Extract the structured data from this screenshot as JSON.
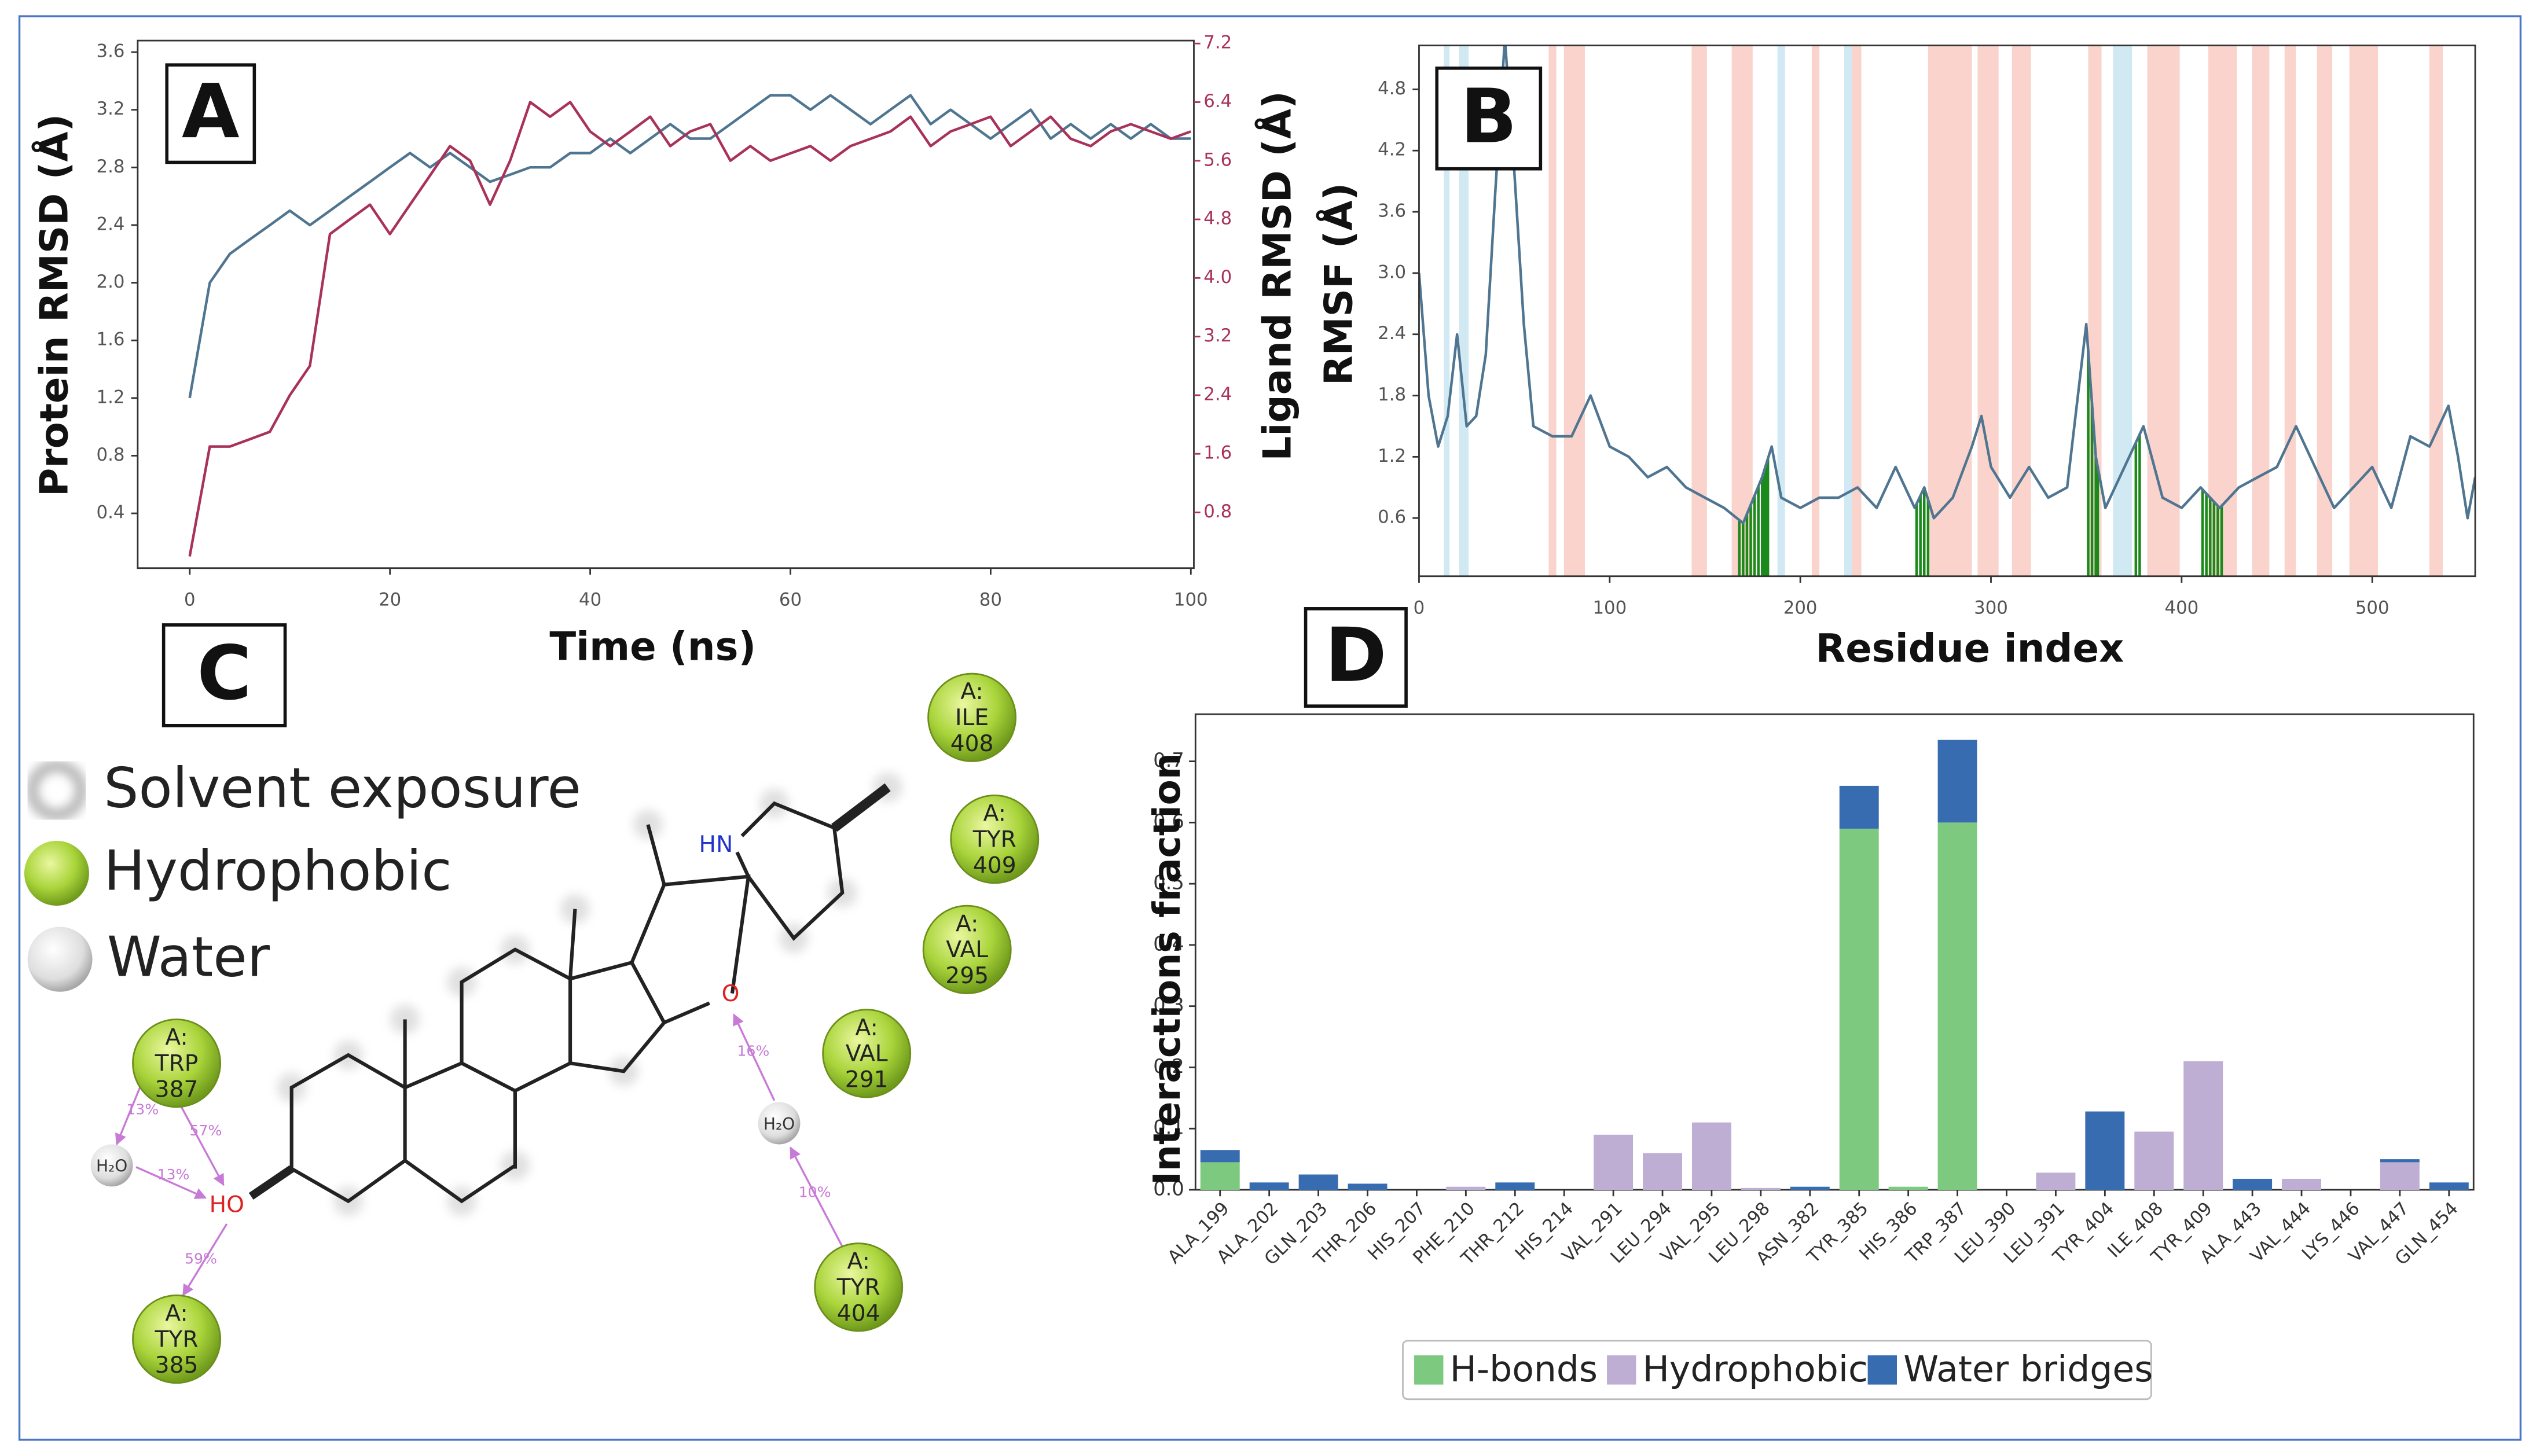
{
  "chart_data": [
    {
      "type": "line",
      "panel_label": "A",
      "xlabel": "Time (ns)",
      "ylabel": "Protein RMSD (Å)",
      "y2label": "Ligand RMSD (Å)",
      "x": [
        0,
        2,
        4,
        6,
        8,
        10,
        12,
        14,
        16,
        18,
        20,
        22,
        24,
        26,
        28,
        30,
        32,
        34,
        36,
        38,
        40,
        42,
        44,
        46,
        48,
        50,
        52,
        54,
        56,
        58,
        60,
        62,
        64,
        66,
        68,
        70,
        72,
        74,
        76,
        78,
        80,
        82,
        84,
        86,
        88,
        90,
        92,
        94,
        96,
        98,
        100
      ],
      "xlim": [
        -5.2,
        100.3
      ],
      "xticks": [
        0,
        20,
        40,
        60,
        80,
        100
      ],
      "ylim": [
        0.02,
        3.68
      ],
      "yticks": [
        0.4,
        0.8,
        1.2,
        1.6,
        {
          "value": 2,
          "label": "2.0"
        },
        2.4,
        2.8,
        3.2,
        3.6
      ],
      "y2lim": [
        0.04,
        7.24
      ],
      "y2ticks": [
        0.8,
        1.6,
        2.4,
        3.2,
        {
          "value": 4,
          "label": "4.0"
        },
        4.8,
        5.6,
        6.4,
        7.2
      ],
      "series": [
        {
          "color": "#4f7590",
          "values": [
            1.2,
            2.0,
            2.2,
            2.3,
            2.4,
            2.5,
            2.4,
            2.5,
            2.6,
            2.7,
            2.8,
            2.9,
            2.8,
            2.9,
            2.8,
            2.7,
            2.75,
            2.8,
            2.8,
            2.9,
            2.9,
            3.0,
            2.9,
            3.0,
            3.1,
            3.0,
            3.0,
            3.1,
            3.2,
            3.3,
            3.3,
            3.2,
            3.3,
            3.2,
            3.1,
            3.2,
            3.3,
            3.1,
            3.2,
            3.1,
            3.0,
            3.1,
            3.2,
            3.0,
            3.1,
            3.0,
            3.1,
            3.0,
            3.1,
            3.0,
            3.0
          ]
        },
        {
          "color": "#a8325a",
          "axis": "y2",
          "values": [
            0.2,
            1.7,
            1.7,
            1.8,
            1.9,
            2.4,
            2.8,
            4.6,
            4.8,
            5.0,
            4.6,
            5.0,
            5.4,
            5.8,
            5.6,
            5.0,
            5.6,
            6.4,
            6.2,
            6.4,
            6.0,
            5.8,
            6.0,
            6.2,
            5.8,
            6.0,
            6.1,
            5.6,
            5.8,
            5.6,
            5.7,
            5.8,
            5.6,
            5.8,
            5.9,
            6.0,
            6.2,
            5.8,
            6.0,
            6.1,
            6.2,
            5.8,
            6.0,
            6.2,
            5.9,
            5.8,
            6.0,
            6.1,
            6.0,
            5.9,
            6.0
          ]
        }
      ]
    },
    {
      "type": "line",
      "panel_label": "B",
      "xlabel": "Residue index",
      "ylabel": "RMSF (Å)",
      "x": [
        0,
        5,
        10,
        15,
        20,
        25,
        30,
        35,
        40,
        45,
        50,
        55,
        60,
        70,
        80,
        90,
        100,
        110,
        120,
        130,
        140,
        150,
        160,
        170,
        180,
        185,
        190,
        200,
        210,
        220,
        230,
        240,
        250,
        260,
        265,
        270,
        280,
        290,
        295,
        300,
        310,
        320,
        330,
        340,
        350,
        355,
        360,
        370,
        380,
        390,
        400,
        410,
        420,
        430,
        440,
        450,
        460,
        470,
        480,
        490,
        500,
        510,
        520,
        530,
        540,
        545,
        550,
        554
      ],
      "xlim": [
        0,
        554
      ],
      "xticks": [
        0,
        100,
        200,
        300,
        400,
        500
      ],
      "ylim": [
        0.03,
        5.23
      ],
      "yticks": [
        0.6,
        1.2,
        1.8,
        2.4,
        {
          "value": 3,
          "label": "3.0"
        },
        3.6,
        4.2,
        4.8
      ],
      "series": [
        {
          "color": "#4f7590",
          "values": [
            3.0,
            1.8,
            1.3,
            1.6,
            2.4,
            1.5,
            1.6,
            2.2,
            3.8,
            5.3,
            4.0,
            2.5,
            1.5,
            1.4,
            1.4,
            1.8,
            1.3,
            1.2,
            1.0,
            1.1,
            0.9,
            0.8,
            0.7,
            0.55,
            1.0,
            1.3,
            0.8,
            0.7,
            0.8,
            0.8,
            0.9,
            0.7,
            1.1,
            0.7,
            0.9,
            0.6,
            0.8,
            1.3,
            1.6,
            1.1,
            0.8,
            1.1,
            0.8,
            0.9,
            2.5,
            1.2,
            0.7,
            1.1,
            1.5,
            0.8,
            0.7,
            0.9,
            0.7,
            0.9,
            1.0,
            1.1,
            1.5,
            1.1,
            0.7,
            0.9,
            1.1,
            0.7,
            1.4,
            1.3,
            1.7,
            1.2,
            0.6,
            1.0
          ]
        }
      ],
      "helix_color": "#f9c9bf",
      "strand_color": "#c5e4f0",
      "contact_color": "#1a8a1a",
      "helix_regions": [
        [
          68,
          72
        ],
        [
          76,
          87
        ],
        [
          143,
          151
        ],
        [
          164,
          175
        ],
        [
          206,
          210
        ],
        [
          227,
          232
        ],
        [
          267,
          290
        ],
        [
          293,
          304
        ],
        [
          311,
          321
        ],
        [
          351,
          358
        ],
        [
          382,
          399
        ],
        [
          414,
          429
        ],
        [
          437,
          446
        ],
        [
          454,
          460
        ],
        [
          471,
          479
        ],
        [
          488,
          503
        ],
        [
          530,
          537
        ]
      ],
      "strand_regions": [
        [
          13,
          16
        ],
        [
          21,
          26
        ],
        [
          188,
          192
        ],
        [
          223,
          227
        ],
        [
          364,
          374
        ]
      ],
      "contacts": [
        168,
        170,
        172,
        174,
        176,
        178,
        180,
        181,
        182,
        183,
        261,
        263,
        265,
        267,
        351,
        353,
        355,
        356,
        376,
        378,
        411,
        413,
        415,
        417,
        419,
        421
      ]
    },
    {
      "type": "bar",
      "stacked": true,
      "panel_label": "D",
      "ylabel": "Interactions fraction",
      "legend": "bottom",
      "categories": [
        "ALA_199",
        "ALA_202",
        "GLN_203",
        "THR_206",
        "HIS_207",
        "PHE_210",
        "THR_212",
        "HIS_214",
        "VAL_291",
        "LEU_294",
        "VAL_295",
        "LEU_298",
        "ASN_382",
        "TYR_385",
        "HIS_386",
        "TRP_387",
        "LEU_390",
        "LEU_391",
        "TYR_404",
        "ILE_408",
        "TYR_409",
        "ALA_443",
        "VAL_444",
        "LYS_446",
        "VAL_447",
        "GLN_454"
      ],
      "ylim": [
        0,
        0.777
      ],
      "yticks": [
        {
          "value": 0,
          "label": "0.0"
        },
        0.1,
        0.2,
        0.3,
        0.4,
        0.5,
        0.6,
        0.7
      ],
      "series": [
        {
          "name": "H-bonds",
          "color": "#7dc97f",
          "values": [
            0.045,
            0,
            0,
            0,
            0,
            0,
            0,
            0,
            0,
            0,
            0,
            0,
            0,
            0.59,
            0.005,
            0.6,
            0,
            0,
            0,
            0,
            0,
            0,
            0,
            0,
            0,
            0
          ]
        },
        {
          "name": "Hydrophobic",
          "color": "#beaed4",
          "values": [
            0,
            0,
            0,
            0,
            0,
            0.005,
            0,
            0,
            0.09,
            0.06,
            0.11,
            0.003,
            0,
            0,
            0,
            0,
            0,
            0.028,
            0,
            0.095,
            0.21,
            0,
            0.018,
            0,
            0.045,
            0
          ]
        },
        {
          "name": "Water bridges",
          "color": "#386cb0",
          "values": [
            0.02,
            0.012,
            0.025,
            0.01,
            0,
            0,
            0.012,
            0,
            0,
            0,
            0,
            0,
            0.005,
            0.07,
            0,
            0.135,
            0,
            0,
            0.128,
            0,
            0,
            0.018,
            0,
            0,
            0.005,
            0.012
          ]
        }
      ]
    }
  ],
  "diagram": {
    "panel_label": "C",
    "legend": [
      "Solvent exposure",
      "Hydrophobic",
      "Water"
    ],
    "residues": [
      {
        "chain": "A:",
        "name": "ILE",
        "number": 408
      },
      {
        "chain": "A:",
        "name": "TYR",
        "number": 409
      },
      {
        "chain": "A:",
        "name": "VAL",
        "number": 295
      },
      {
        "chain": "A:",
        "name": "VAL",
        "number": 291
      },
      {
        "chain": "A:",
        "name": "TRP",
        "number": 387
      },
      {
        "chain": "A:",
        "name": "TYR",
        "number": 385
      },
      {
        "chain": "A:",
        "name": "TYR",
        "number": 404
      }
    ],
    "atoms": [
      "HN",
      "O",
      "HO"
    ],
    "waters": [
      "H₂O",
      "H₂O"
    ],
    "interactions": [
      "13%",
      "57%",
      "13%",
      "59%",
      "16%",
      "10%"
    ]
  }
}
